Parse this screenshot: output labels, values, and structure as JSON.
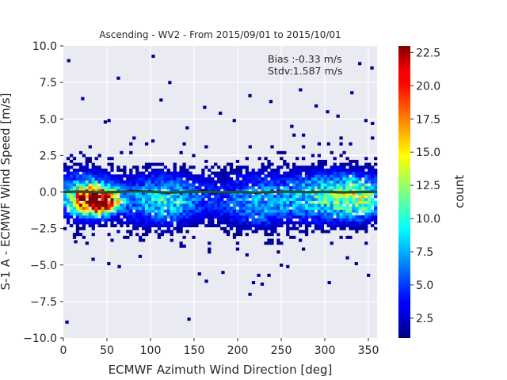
{
  "chart_data": {
    "type": "heatmap",
    "title": "Ascending - WV2 - From 2015/09/01 to 2015/10/01",
    "xlabel": "ECMWF Azimuth Wind Direction [deg]",
    "ylabel": "S-1 A - ECMWF Wind Speed [m/s]",
    "xlim": [
      0,
      360
    ],
    "ylim": [
      -10,
      10
    ],
    "xticks": [
      "0",
      "50",
      "100",
      "150",
      "200",
      "250",
      "300",
      "350"
    ],
    "yticks": [
      "10.0",
      "7.5",
      "5.0",
      "2.5",
      "0.0",
      "−2.5",
      "−5.0",
      "−7.5",
      "−10.0"
    ],
    "grid": true,
    "annotations": [
      "Bias :-0.33 m/s",
      "Stdv:1.587 m/s"
    ],
    "zero_line": 0,
    "bin_width_x": 3.6,
    "bin_height_y": 0.2,
    "colorbar": {
      "label": "count",
      "colormap": "jet",
      "range": [
        1,
        23
      ],
      "ticks": [
        "2.5",
        "5.0",
        "7.5",
        "10.0",
        "12.5",
        "15.0",
        "17.5",
        "20.0",
        "22.5"
      ]
    },
    "density_clusters": [
      {
        "x": 40,
        "y": -0.6,
        "sx": 15,
        "sy": 0.55,
        "peak": 23
      },
      {
        "x": 25,
        "y": -0.3,
        "sx": 22,
        "sy": 1.0,
        "peak": 9
      },
      {
        "x": 115,
        "y": -0.6,
        "sx": 28,
        "sy": 1.1,
        "peak": 7
      },
      {
        "x": 225,
        "y": -0.8,
        "sx": 30,
        "sy": 1.2,
        "peak": 5
      },
      {
        "x": 300,
        "y": -0.3,
        "sx": 28,
        "sy": 1.1,
        "peak": 7
      },
      {
        "x": 340,
        "y": -0.4,
        "sx": 18,
        "sy": 1.0,
        "peak": 8
      }
    ],
    "sparse_points": [
      [
        6,
        9.0
      ],
      [
        103,
        9.3
      ],
      [
        63,
        7.8
      ],
      [
        122,
        7.5
      ],
      [
        340,
        8.8
      ],
      [
        354,
        8.5
      ],
      [
        22,
        6.4
      ],
      [
        48,
        4.8
      ],
      [
        112,
        6.3
      ],
      [
        162,
        5.8
      ],
      [
        214,
        6.6
      ],
      [
        238,
        6.2
      ],
      [
        272,
        7.0
      ],
      [
        290,
        5.9
      ],
      [
        315,
        5.2
      ],
      [
        331,
        6.8
      ],
      [
        142,
        4.4
      ],
      [
        180,
        5.4
      ],
      [
        196,
        4.9
      ],
      [
        262,
        4.5
      ],
      [
        303,
        5.5
      ],
      [
        347,
        4.9
      ],
      [
        4,
        -8.9
      ],
      [
        144,
        -8.7
      ],
      [
        214,
        -7.0
      ],
      [
        218,
        -6.2
      ],
      [
        156,
        -5.6
      ],
      [
        164,
        -6.1
      ],
      [
        183,
        -5.5
      ],
      [
        224,
        -5.7
      ],
      [
        228,
        -6.3
      ],
      [
        250,
        -5.0
      ],
      [
        305,
        -6.2
      ],
      [
        336,
        -4.9
      ],
      [
        350,
        -5.7
      ],
      [
        34,
        -4.6
      ],
      [
        52,
        -4.9
      ],
      [
        88,
        -4.4
      ],
      [
        64,
        -5.1
      ],
      [
        14,
        -3.4
      ]
    ],
    "mean_line": [
      [
        0,
        0.0
      ],
      [
        20,
        0.02
      ],
      [
        40,
        -0.02
      ],
      [
        60,
        0.0
      ],
      [
        80,
        0.04
      ],
      [
        100,
        0.02
      ],
      [
        120,
        -0.03
      ],
      [
        140,
        0.0
      ],
      [
        160,
        0.02
      ],
      [
        180,
        -0.02
      ],
      [
        200,
        0.01
      ],
      [
        220,
        -0.03
      ],
      [
        240,
        0.0
      ],
      [
        260,
        0.02
      ],
      [
        280,
        -0.01
      ],
      [
        300,
        0.01
      ],
      [
        320,
        -0.02
      ],
      [
        340,
        0.0
      ],
      [
        360,
        0.01
      ]
    ]
  }
}
